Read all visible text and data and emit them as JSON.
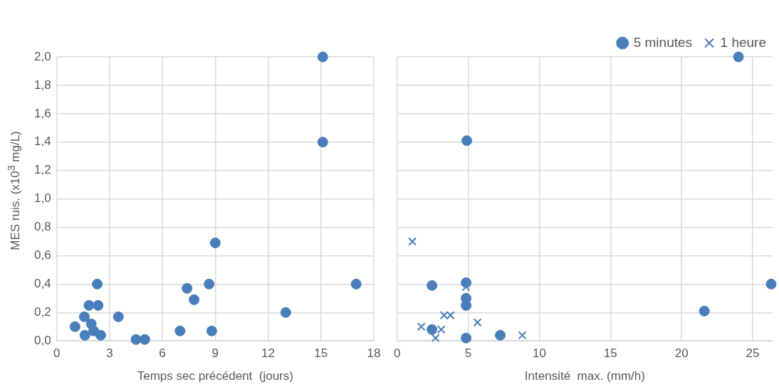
{
  "chart_data": [
    {
      "type": "scatter",
      "ylabel": "MES ruis. (x10$^{3}$ mg/L)",
      "xlabel": "Temps sec précédent  (jours)",
      "xlim": [
        0,
        18
      ],
      "xticks": [
        0,
        3,
        6,
        9,
        12,
        15,
        18
      ],
      "ylim": [
        0,
        2
      ],
      "yticks": [
        {
          "value": 0,
          "label": "0,0"
        },
        {
          "value": 0.2,
          "label": "0,2"
        },
        {
          "value": 0.4,
          "label": "0,4"
        },
        {
          "value": 0.6,
          "label": "0,6"
        },
        {
          "value": 0.8,
          "label": "0,8"
        },
        {
          "value": 1,
          "label": "1,0"
        },
        {
          "value": 1.2,
          "label": "1,2"
        },
        {
          "value": 1.4,
          "label": "1,4"
        },
        {
          "value": 1.6,
          "label": "1,6"
        },
        {
          "value": 1.8,
          "label": "1,8"
        },
        {
          "value": 2,
          "label": "2,0"
        }
      ],
      "grid": true,
      "legend": false,
      "series": [
        {
          "color": "#4a7ebb",
          "marker": "circle",
          "x": [
            1.04,
            1.57,
            1.83,
            2.35,
            2.3,
            1.96,
            2.1,
            1.6,
            2.5,
            3.5,
            4.5,
            5.0,
            7.0,
            7.4,
            7.8,
            8.65,
            8.8,
            9.0,
            13.0,
            15.1,
            15.1,
            17.0
          ],
          "values": [
            0.1,
            0.17,
            0.25,
            0.25,
            0.4,
            0.12,
            0.07,
            0.04,
            0.04,
            0.17,
            0.01,
            0.01,
            0.07,
            0.37,
            0.29,
            0.4,
            0.07,
            0.69,
            0.2,
            1.4,
            2.0,
            0.4
          ]
        }
      ]
    },
    {
      "type": "scatter",
      "xlabel": "Intensité  max. (mm/h)",
      "xlim": [
        0,
        26.4
      ],
      "xticks": [
        0,
        5,
        10,
        15,
        20,
        25
      ],
      "ylim": [
        0,
        2
      ],
      "yticks": [
        {
          "value": 0,
          "label": null
        },
        {
          "value": 0.2,
          "label": null
        },
        {
          "value": 0.4,
          "label": null
        },
        {
          "value": 0.6,
          "label": null
        },
        {
          "value": 0.8,
          "label": null
        },
        {
          "value": 1,
          "label": null
        },
        {
          "value": 1.2,
          "label": null
        },
        {
          "value": 1.4,
          "label": null
        },
        {
          "value": 1.6,
          "label": null
        },
        {
          "value": 1.8,
          "label": null
        },
        {
          "value": 2,
          "label": null
        }
      ],
      "tick_labels": "x",
      "grid": true,
      "legend": "top right",
      "series": [
        {
          "name": "5 minutes",
          "color": "#4a7ebb",
          "marker": "circle",
          "x": [
            2.45,
            4.85,
            4.85,
            4.85,
            4.85,
            2.45,
            7.25,
            21.6,
            24.0,
            4.9,
            26.3
          ],
          "values": [
            0.39,
            0.41,
            0.3,
            0.25,
            0.02,
            0.08,
            0.04,
            0.21,
            2.0,
            1.41,
            0.4
          ]
        },
        {
          "name": "1 heure",
          "color": "#4a7ebb",
          "marker": "cross",
          "x": [
            1.07,
            1.7,
            2.7,
            3.1,
            3.3,
            3.75,
            5.65,
            8.8,
            4.85
          ],
          "values": [
            0.7,
            0.1,
            0.02,
            0.08,
            0.18,
            0.18,
            0.13,
            0.04,
            0.38
          ]
        }
      ]
    }
  ]
}
